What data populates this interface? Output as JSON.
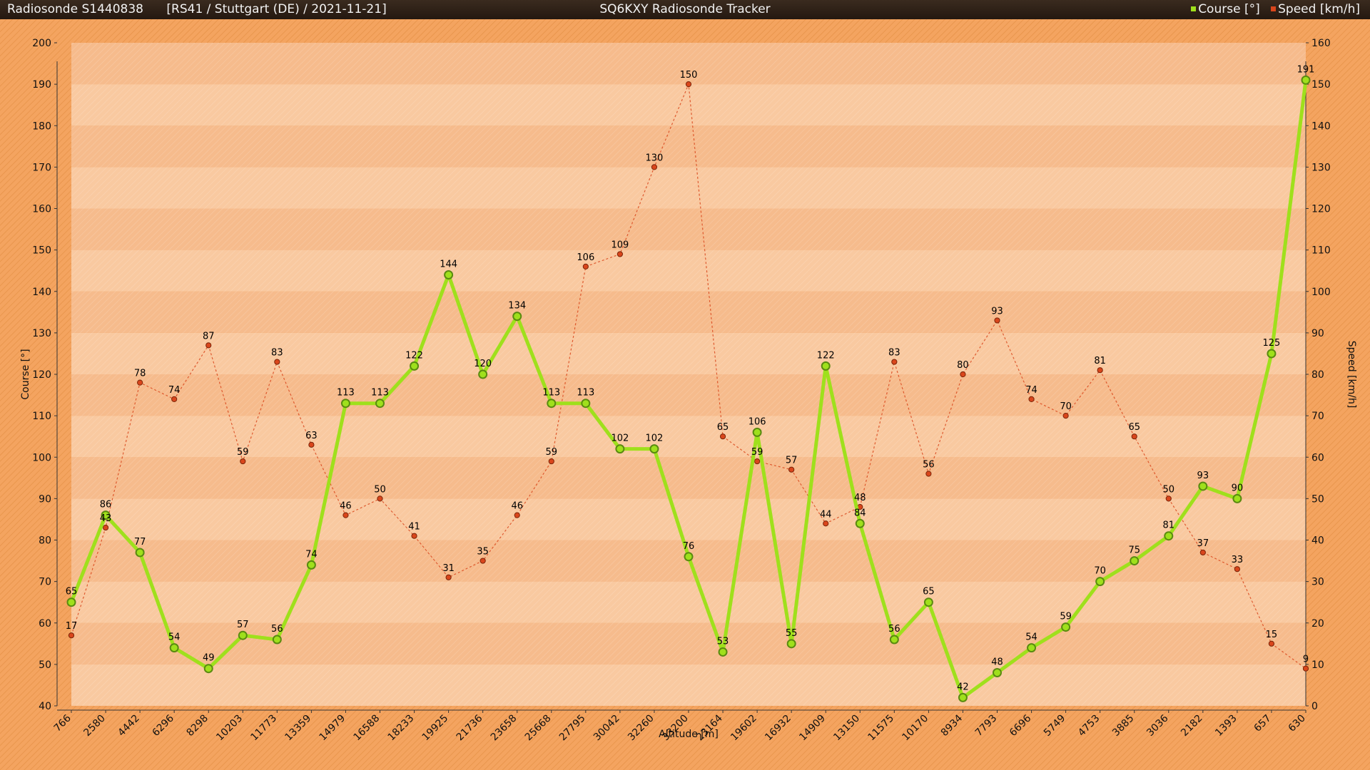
{
  "window": {
    "sonde": "Radiosonde S1440838",
    "info": "[RS41 / Stuttgart (DE) / 2021-11-21]",
    "app_title": "SQ6KXY Radiosonde Tracker"
  },
  "colors": {
    "course": "#9fe01c",
    "speed": "#d9461c",
    "bg": "#f4a460",
    "band_a": "#f9c9a0",
    "band_b": "#f6bb8c"
  },
  "chart_data": {
    "type": "line",
    "title": "",
    "xlabel": "Altitude [m]",
    "ylabel": "Course [°]",
    "y2label": "Speed [km/h]",
    "ylim": [
      40,
      200
    ],
    "y2lim": [
      0,
      160
    ],
    "y_ticks": [
      40,
      50,
      60,
      70,
      80,
      90,
      100,
      110,
      120,
      130,
      140,
      150,
      160,
      170,
      180,
      190,
      200
    ],
    "y2_ticks": [
      0,
      10,
      20,
      30,
      40,
      50,
      60,
      70,
      80,
      90,
      100,
      110,
      120,
      130,
      140,
      150,
      160
    ],
    "grid": "horizontal bands",
    "legend": "top-right",
    "categories": [
      "766",
      "2580",
      "4442",
      "6296",
      "8298",
      "10203",
      "11773",
      "13359",
      "14979",
      "16588",
      "18233",
      "19925",
      "21736",
      "23658",
      "25668",
      "27795",
      "30042",
      "32260",
      "33200",
      "23164",
      "19602",
      "16932",
      "14909",
      "13150",
      "11575",
      "10170",
      "8934",
      "7793",
      "6696",
      "5749",
      "4753",
      "3885",
      "3036",
      "2182",
      "1393",
      "657",
      "630"
    ],
    "series": [
      {
        "name": "Course [°]",
        "axis": "left",
        "values": [
          65,
          86,
          77,
          54,
          49,
          57,
          56,
          74,
          113,
          113,
          122,
          144,
          120,
          134,
          113,
          113,
          102,
          102,
          76,
          53,
          106,
          55,
          122,
          84,
          56,
          65,
          42,
          48,
          54,
          59,
          70,
          75,
          81,
          93,
          90,
          125,
          191
        ]
      },
      {
        "name": "Speed [km/h]",
        "axis": "right",
        "values": [
          17,
          43,
          78,
          74,
          87,
          59,
          83,
          63,
          46,
          50,
          41,
          31,
          35,
          46,
          59,
          106,
          109,
          130,
          150,
          65,
          59,
          57,
          44,
          48,
          83,
          56,
          80,
          93,
          74,
          70,
          81,
          65,
          50,
          37,
          33,
          15,
          9
        ]
      }
    ]
  }
}
